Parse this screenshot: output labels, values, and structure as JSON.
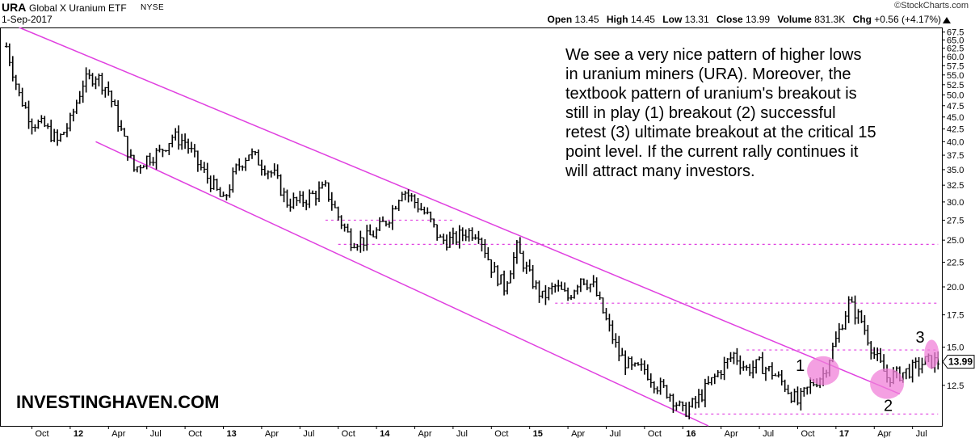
{
  "header": {
    "symbol": "URA",
    "name": "Global X Uranium ETF",
    "exchange": "NYSE",
    "date": "1-Sep-2017",
    "brand": "©StockCharts.com",
    "open_label": "Open",
    "open": "13.45",
    "high_label": "High",
    "high": "14.45",
    "low_label": "Low",
    "low": "13.31",
    "close_label": "Close",
    "close": "13.99",
    "volume_label": "Volume",
    "volume": "831.3K",
    "chg_label": "Chg",
    "chg": "+0.56 (+4.17%)"
  },
  "note": "We see a very nice pattern of higher lows\nin uranium miners (URA). Moreover, the\ntextbook pattern of uranium's breakout is\nstill in play (1) breakout (2) successful\nretest (3) ultimate breakout at the critical 15\npoint level. If the current rally continues it\nwill attract many investors.",
  "watermark": "INVESTINGHAVEN.COM",
  "colors": {
    "channel": "#e040e0",
    "circle": "#f080d8",
    "bars": "#000000"
  },
  "chart_data": {
    "type": "bar",
    "title": "URA Global X Uranium ETF NYSE",
    "scale": "log",
    "ylim": [
      10.3,
      69
    ],
    "y_ticks": [
      12.5,
      15.0,
      17.5,
      20.0,
      22.5,
      25.0,
      27.5,
      30.0,
      32.5,
      35.0,
      37.5,
      40.0,
      42.5,
      45.0,
      47.5,
      50.0,
      52.5,
      55.0,
      57.5,
      60.0,
      62.5,
      65.0,
      67.5
    ],
    "x_ticks": [
      "Oct",
      "12",
      "Apr",
      "Jul",
      "Oct",
      "13",
      "Apr",
      "Jul",
      "Oct",
      "14",
      "Apr",
      "Jul",
      "Oct",
      "15",
      "Apr",
      "Jul",
      "Oct",
      "16",
      "Apr",
      "Jul",
      "Oct",
      "17",
      "Apr",
      "Jul"
    ],
    "bold_x_ticks": [
      "12",
      "13",
      "14",
      "15",
      "16",
      "17"
    ],
    "last_price": "13.99",
    "series": [
      {
        "date": "2011-08",
        "value": 63
      },
      {
        "date": "2011-09",
        "value": 50
      },
      {
        "date": "2011-10",
        "value": 44
      },
      {
        "date": "2011-11",
        "value": 43
      },
      {
        "date": "2011-12",
        "value": 40
      },
      {
        "date": "2012-01",
        "value": 44
      },
      {
        "date": "2012-02",
        "value": 53
      },
      {
        "date": "2012-03",
        "value": 55
      },
      {
        "date": "2012-04",
        "value": 51
      },
      {
        "date": "2012-05",
        "value": 42
      },
      {
        "date": "2012-06",
        "value": 35
      },
      {
        "date": "2012-07",
        "value": 37
      },
      {
        "date": "2012-08",
        "value": 38
      },
      {
        "date": "2012-09",
        "value": 41
      },
      {
        "date": "2012-10",
        "value": 40
      },
      {
        "date": "2012-11",
        "value": 36
      },
      {
        "date": "2012-12",
        "value": 33
      },
      {
        "date": "2013-01",
        "value": 30
      },
      {
        "date": "2013-02",
        "value": 35
      },
      {
        "date": "2013-03",
        "value": 38
      },
      {
        "date": "2013-04",
        "value": 36
      },
      {
        "date": "2013-05",
        "value": 34
      },
      {
        "date": "2013-06",
        "value": 30
      },
      {
        "date": "2013-07",
        "value": 30
      },
      {
        "date": "2013-08",
        "value": 31
      },
      {
        "date": "2013-09",
        "value": 32
      },
      {
        "date": "2013-10",
        "value": 28
      },
      {
        "date": "2013-11",
        "value": 25
      },
      {
        "date": "2013-12",
        "value": 25
      },
      {
        "date": "2014-01",
        "value": 26
      },
      {
        "date": "2014-02",
        "value": 28
      },
      {
        "date": "2014-03",
        "value": 32
      },
      {
        "date": "2014-04",
        "value": 30
      },
      {
        "date": "2014-05",
        "value": 28
      },
      {
        "date": "2014-06",
        "value": 25
      },
      {
        "date": "2014-07",
        "value": 25
      },
      {
        "date": "2014-08",
        "value": 26
      },
      {
        "date": "2014-09",
        "value": 26
      },
      {
        "date": "2014-10",
        "value": 22
      },
      {
        "date": "2014-11",
        "value": 20
      },
      {
        "date": "2014-12",
        "value": 24
      },
      {
        "date": "2015-01",
        "value": 21
      },
      {
        "date": "2015-02",
        "value": 19
      },
      {
        "date": "2015-03",
        "value": 20
      },
      {
        "date": "2015-04",
        "value": 19
      },
      {
        "date": "2015-05",
        "value": 21
      },
      {
        "date": "2015-06",
        "value": 20
      },
      {
        "date": "2015-07",
        "value": 17
      },
      {
        "date": "2015-08",
        "value": 14.5
      },
      {
        "date": "2015-09",
        "value": 13.5
      },
      {
        "date": "2015-10",
        "value": 13.5
      },
      {
        "date": "2015-11",
        "value": 12.5
      },
      {
        "date": "2015-12",
        "value": 12
      },
      {
        "date": "2016-01",
        "value": 11
      },
      {
        "date": "2016-02",
        "value": 11.5
      },
      {
        "date": "2016-03",
        "value": 12.5
      },
      {
        "date": "2016-04",
        "value": 13.5
      },
      {
        "date": "2016-05",
        "value": 14.5
      },
      {
        "date": "2016-06",
        "value": 13.5
      },
      {
        "date": "2016-07",
        "value": 13.8
      },
      {
        "date": "2016-08",
        "value": 13.3
      },
      {
        "date": "2016-09",
        "value": 12.5
      },
      {
        "date": "2016-10",
        "value": 11.5
      },
      {
        "date": "2016-11",
        "value": 12.5
      },
      {
        "date": "2016-12",
        "value": 13.2
      },
      {
        "date": "2017-01",
        "value": 15.5
      },
      {
        "date": "2017-02",
        "value": 18.5
      },
      {
        "date": "2017-03",
        "value": 17
      },
      {
        "date": "2017-04",
        "value": 14.5
      },
      {
        "date": "2017-05",
        "value": 13
      },
      {
        "date": "2017-06",
        "value": 13.2
      },
      {
        "date": "2017-07",
        "value": 13.5
      },
      {
        "date": "2017-08",
        "value": 14
      },
      {
        "date": "2017-09",
        "value": 13.99
      }
    ],
    "support_levels": [
      {
        "value": 27.5,
        "from": "2013-09",
        "to": "2014-07"
      },
      {
        "value": 24.5,
        "from": "2013-10",
        "to": "2017-09"
      },
      {
        "value": 18.5,
        "from": "2015-03",
        "to": "2017-09"
      },
      {
        "value": 14.8,
        "from": "2016-06",
        "to": "2017-09"
      },
      {
        "value": 10.9,
        "from": "2016-01",
        "to": "2017-09"
      }
    ],
    "channel": {
      "upper": [
        {
          "date": "2011-09",
          "value": 69
        },
        {
          "date": "2017-06",
          "value": 12
        }
      ],
      "lower": [
        {
          "date": "2012-03",
          "value": 40
        },
        {
          "date": "2016-03",
          "value": 10.3
        }
      ]
    },
    "annotations": [
      {
        "label": "1",
        "date": "2016-12",
        "value": 13.8
      },
      {
        "label": "2",
        "date": "2017-05",
        "value": 11.4
      },
      {
        "label": "3",
        "date": "2017-08",
        "value": 15.8
      }
    ]
  }
}
